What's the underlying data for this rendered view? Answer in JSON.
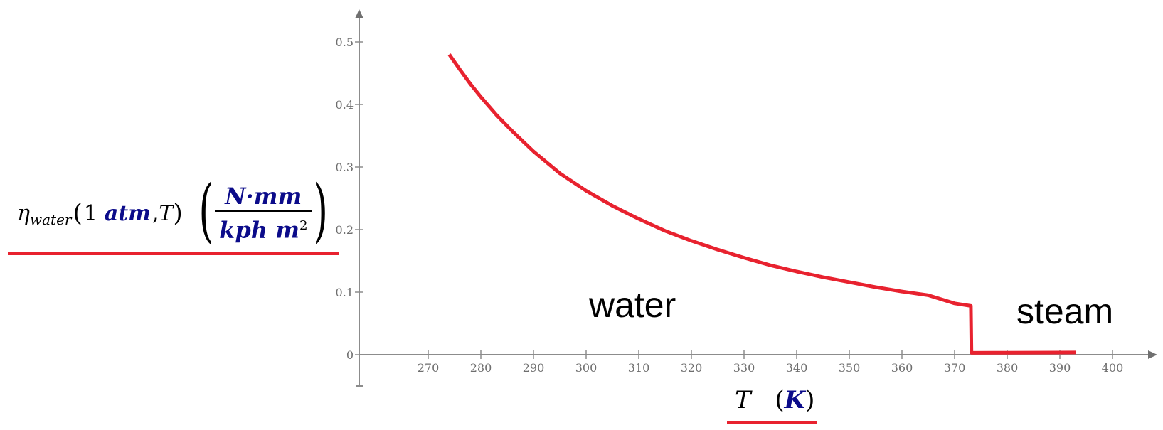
{
  "colors": {
    "curve": "#e8222f",
    "axis": "#8c8c8c",
    "tick_text": "#6e6e6e",
    "unit_blue": "#0b0b8a",
    "underline": "#e8222f"
  },
  "y_label": {
    "symbol": "η",
    "subscript": "water",
    "open_paren": "(",
    "arg1_number": "1",
    "arg1_unit": "atm",
    "comma": ",",
    "arg2": "T",
    "close_paren": ")",
    "unit_open": "(",
    "unit_numerator": "N·mm",
    "unit_denominator": "kph m",
    "unit_denominator_exponent": "2",
    "unit_close": ")"
  },
  "x_label": {
    "variable": "T",
    "open_paren": "(",
    "unit": "K",
    "close_paren": ")"
  },
  "chart_data": {
    "type": "line",
    "title": "",
    "xlabel": "T (K)",
    "ylabel": "η_water(1 atm, T) (N·mm / (kph m^2))",
    "xlim": [
      260,
      410
    ],
    "ylim": [
      -0.05,
      0.55
    ],
    "x_ticks": [
      270,
      280,
      290,
      300,
      310,
      320,
      330,
      340,
      350,
      360,
      370,
      380,
      390,
      400
    ],
    "y_ticks": [
      0,
      0.1,
      0.2,
      0.3,
      0.4,
      0.5
    ],
    "y_tick_labels": [
      "0",
      "0.1",
      "0.2",
      "0.3",
      "0.4",
      "0.5"
    ],
    "grid": false,
    "legend": null,
    "annotations": [
      {
        "text": "water",
        "x": 309,
        "y": 0.07
      },
      {
        "text": "steam",
        "x": 381,
        "y": 0.07
      }
    ],
    "series": [
      {
        "name": "η_water",
        "x": [
          274,
          276,
          278,
          280,
          283,
          286,
          290,
          295,
          300,
          305,
          310,
          315,
          320,
          325,
          330,
          335,
          340,
          345,
          350,
          355,
          360,
          365,
          370,
          373.1,
          373.2,
          380,
          385,
          390,
          393
        ],
        "y": [
          0.48,
          0.456,
          0.433,
          0.412,
          0.383,
          0.357,
          0.325,
          0.29,
          0.262,
          0.238,
          0.217,
          0.198,
          0.182,
          0.168,
          0.155,
          0.143,
          0.133,
          0.124,
          0.116,
          0.108,
          0.101,
          0.095,
          0.082,
          0.078,
          0.003,
          0.0032,
          0.0033,
          0.0034,
          0.0035
        ]
      }
    ]
  }
}
